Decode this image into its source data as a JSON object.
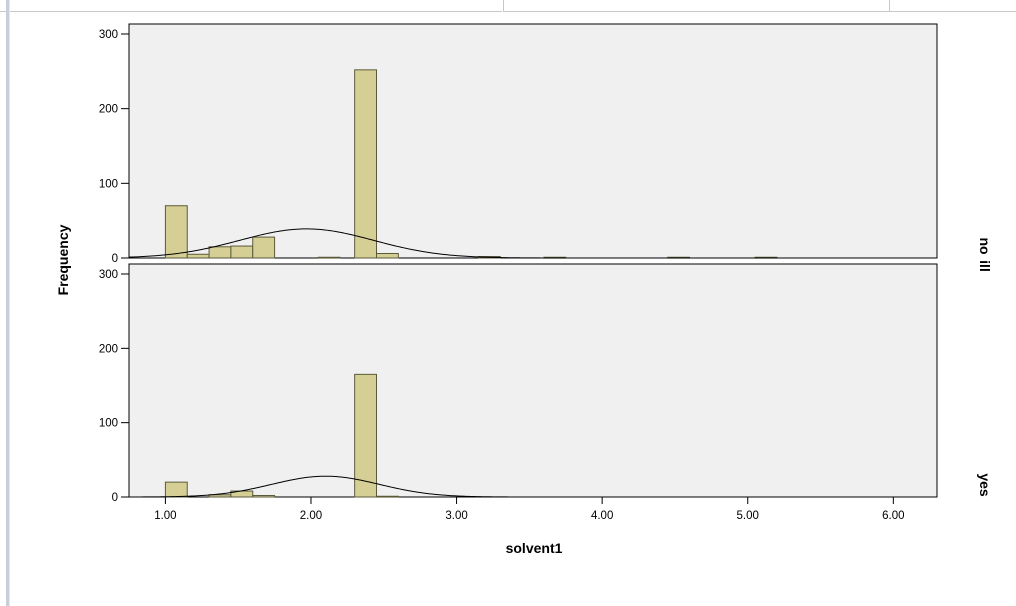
{
  "colors": {
    "bar_fill": "#d6cf95",
    "bar_stroke": "#5a5a3a",
    "panel_bg": "#f0f0f0",
    "curve": "#000000"
  },
  "chart_data": {
    "type": "histogram",
    "panel_variable": "ill",
    "xlabel": "solvent1",
    "ylabel": "Frequency",
    "xlim": [
      0.75,
      6.3
    ],
    "ylim": [
      0,
      300
    ],
    "x_ticks": [
      "1.00",
      "2.00",
      "3.00",
      "4.00",
      "5.00",
      "6.00"
    ],
    "y_ticks": [
      "0",
      "100",
      "200",
      "300"
    ],
    "bin_width": 0.15,
    "normal_curve": true,
    "panels": [
      {
        "label": "no",
        "bins": [
          {
            "x": 1.075,
            "count": 70
          },
          {
            "x": 1.225,
            "count": 5
          },
          {
            "x": 1.375,
            "count": 15
          },
          {
            "x": 1.525,
            "count": 16
          },
          {
            "x": 1.675,
            "count": 28
          },
          {
            "x": 2.125,
            "count": 1
          },
          {
            "x": 2.375,
            "count": 252
          },
          {
            "x": 2.525,
            "count": 6
          },
          {
            "x": 3.225,
            "count": 2
          },
          {
            "x": 3.675,
            "count": 1
          },
          {
            "x": 4.525,
            "count": 1
          },
          {
            "x": 5.125,
            "count": 1
          }
        ],
        "normal": {
          "mean": 1.97,
          "sd": 0.46,
          "peak": 39
        }
      },
      {
        "label": "yes",
        "bins": [
          {
            "x": 1.075,
            "count": 20
          },
          {
            "x": 1.375,
            "count": 3
          },
          {
            "x": 1.525,
            "count": 8
          },
          {
            "x": 1.675,
            "count": 2
          },
          {
            "x": 2.375,
            "count": 165
          },
          {
            "x": 2.525,
            "count": 1
          }
        ],
        "normal": {
          "mean": 2.1,
          "sd": 0.37,
          "peak": 28
        }
      }
    ]
  }
}
